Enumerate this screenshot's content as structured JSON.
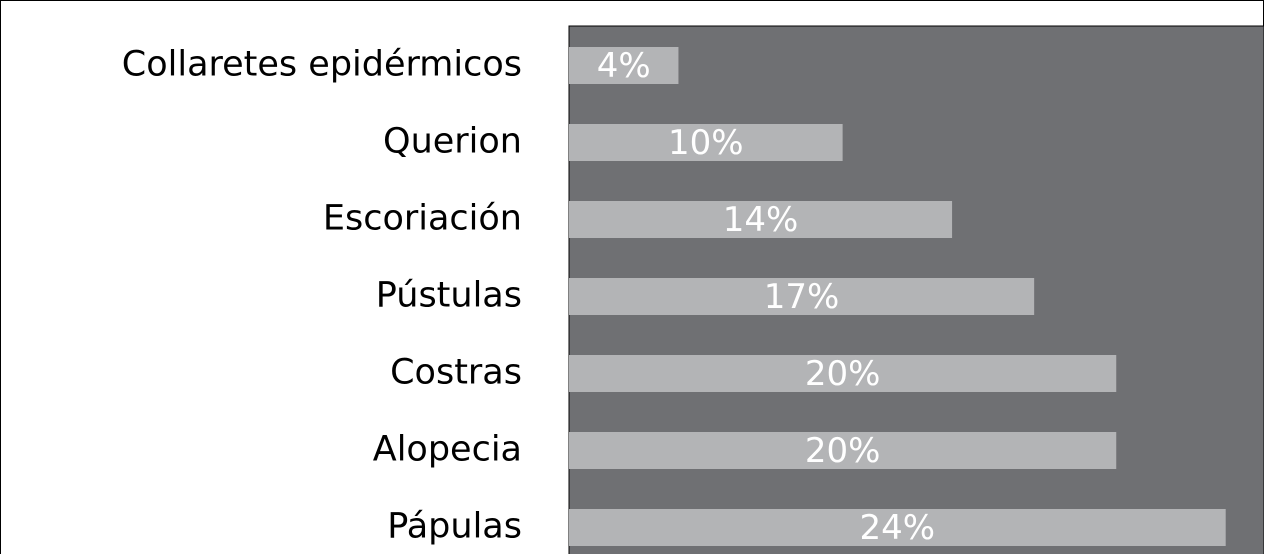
{
  "chart_data": {
    "type": "bar",
    "orientation": "horizontal",
    "categories": [
      "Collaretes epidérmicos",
      "Querion",
      "Escoriación",
      "Pústulas",
      "Costras",
      "Alopecia",
      "Pápulas"
    ],
    "values": [
      4,
      10,
      14,
      17,
      20,
      20,
      24
    ],
    "value_labels": [
      "4%",
      "10%",
      "14%",
      "17%",
      "20%",
      "20%",
      "24%"
    ],
    "color": "#b3b4b6",
    "background": "#6f7073",
    "xlim": [
      0,
      25.4
    ]
  }
}
